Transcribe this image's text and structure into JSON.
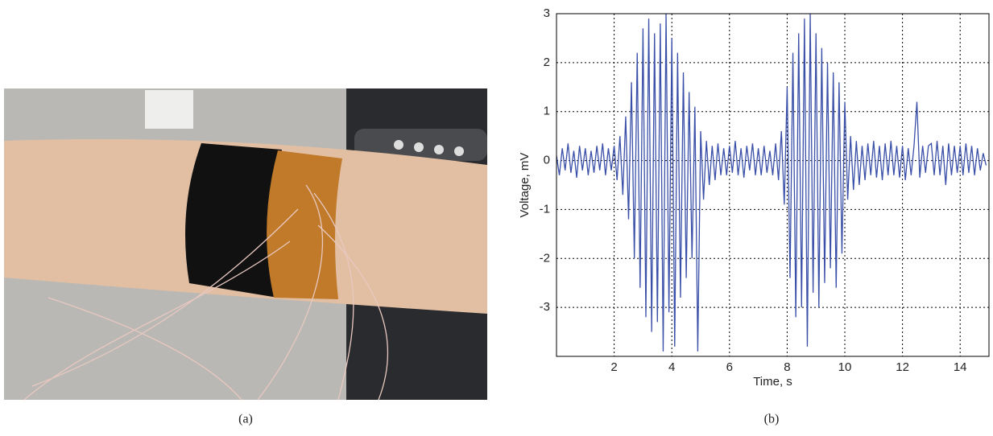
{
  "captions": [
    "(a)",
    "(b)"
  ],
  "chart_data": {
    "type": "line",
    "xlabel": "Time, s",
    "ylabel": "Voltage, mV",
    "xlim": [
      0,
      15
    ],
    "ylim": [
      -4,
      3
    ],
    "xticks": [
      2,
      4,
      6,
      8,
      10,
      12,
      14
    ],
    "yticks": [
      -3,
      -2,
      -1,
      0,
      1,
      2,
      3
    ],
    "grid": true,
    "x": [
      0,
      0.1,
      0.2,
      0.3,
      0.4,
      0.5,
      0.6,
      0.7,
      0.8,
      0.9,
      1,
      1.1,
      1.2,
      1.3,
      1.4,
      1.5,
      1.6,
      1.7,
      1.8,
      1.9,
      2,
      2.1,
      2.2,
      2.3,
      2.4,
      2.5,
      2.6,
      2.7,
      2.8,
      2.9,
      3,
      3.1,
      3.2,
      3.3,
      3.4,
      3.5,
      3.6,
      3.7,
      3.8,
      3.9,
      4,
      4.1,
      4.2,
      4.3,
      4.4,
      4.5,
      4.6,
      4.7,
      4.8,
      4.9,
      5,
      5.1,
      5.2,
      5.3,
      5.4,
      5.5,
      5.6,
      5.7,
      5.8,
      5.9,
      6,
      6.1,
      6.2,
      6.3,
      6.4,
      6.5,
      6.6,
      6.7,
      6.8,
      6.9,
      7,
      7.1,
      7.2,
      7.3,
      7.4,
      7.5,
      7.6,
      7.7,
      7.8,
      7.9,
      8,
      8.1,
      8.2,
      8.3,
      8.4,
      8.5,
      8.6,
      8.7,
      8.8,
      8.9,
      9,
      9.1,
      9.2,
      9.3,
      9.4,
      9.5,
      9.6,
      9.7,
      9.8,
      9.9,
      10,
      10.1,
      10.2,
      10.3,
      10.4,
      10.5,
      10.6,
      10.7,
      10.8,
      10.9,
      11,
      11.1,
      11.2,
      11.3,
      11.4,
      11.5,
      11.6,
      11.7,
      11.8,
      11.9,
      12,
      12.1,
      12.2,
      12.3,
      12.4,
      12.5,
      12.6,
      12.7,
      12.8,
      12.9,
      13,
      13.1,
      13.2,
      13.3,
      13.4,
      13.5,
      13.6,
      13.7,
      13.8,
      13.9,
      14,
      14.1,
      14.2,
      14.3,
      14.4,
      14.5,
      14.6,
      14.7,
      14.8,
      14.9
    ],
    "series": [
      {
        "color": "#3a4fa8",
        "values": [
          0.1,
          -0.3,
          0.25,
          -0.2,
          0.35,
          -0.25,
          0.2,
          -0.35,
          0.3,
          -0.2,
          0.25,
          -0.3,
          0.2,
          -0.25,
          0.3,
          -0.2,
          0.35,
          -0.3,
          0.25,
          -0.2,
          0.3,
          -0.4,
          0.5,
          -0.7,
          0.9,
          -1.2,
          1.6,
          -2.0,
          2.2,
          -2.6,
          2.7,
          -3.2,
          2.9,
          -3.5,
          2.6,
          -3.3,
          2.8,
          -3.9,
          3.0,
          -3.1,
          2.5,
          -3.8,
          2.2,
          -2.8,
          1.8,
          -2.4,
          1.4,
          -2.0,
          1.1,
          -3.9,
          0.6,
          -0.8,
          0.4,
          -0.5,
          0.3,
          -0.4,
          0.35,
          -0.3,
          0.25,
          -0.3,
          0.3,
          -0.25,
          0.4,
          -0.3,
          0.25,
          -0.35,
          0.3,
          -0.2,
          0.35,
          -0.3,
          0.25,
          -0.3,
          0.3,
          -0.25,
          0.2,
          -0.3,
          0.35,
          -0.4,
          0.6,
          -0.9,
          1.5,
          -2.4,
          2.2,
          -3.2,
          2.6,
          -3.0,
          2.9,
          -3.8,
          3.0,
          -2.7,
          2.6,
          -3.0,
          2.3,
          -2.5,
          2.0,
          -2.2,
          1.8,
          -2.6,
          1.6,
          -1.9,
          1.2,
          -0.8,
          0.5,
          -0.6,
          0.4,
          -0.5,
          0.3,
          -0.4,
          0.35,
          -0.3,
          0.4,
          -0.35,
          0.3,
          -0.4,
          0.35,
          -0.3,
          0.4,
          -0.3,
          0.3,
          -0.35,
          0.3,
          -0.4,
          0.25,
          -0.3,
          0.3,
          1.2,
          -0.35,
          0.3,
          -0.25,
          0.3,
          0.35,
          -0.3,
          0.4,
          -0.3,
          0.3,
          -0.5,
          0.35,
          -0.3,
          0.3,
          -0.25,
          0.3,
          -0.3,
          0.35,
          -0.25,
          0.3,
          -0.3,
          0.25,
          -0.2,
          0.15,
          -0.1
        ]
      }
    ]
  }
}
